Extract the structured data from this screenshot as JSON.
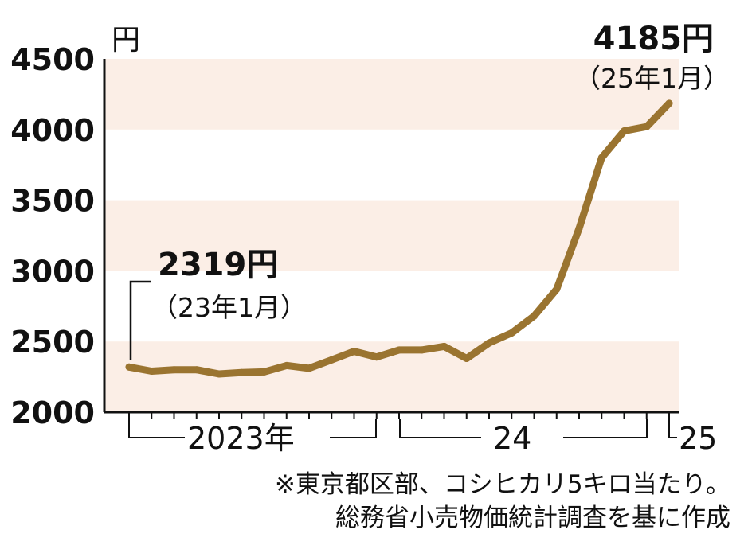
{
  "chart_data": {
    "type": "line",
    "unit": "円",
    "y_ticks": [
      "4500",
      "4000",
      "3500",
      "3000",
      "2500",
      "2000"
    ],
    "ylim": [
      2000,
      4500
    ],
    "x_labels": [
      "2023年",
      "24",
      "25"
    ],
    "series": [
      {
        "color": "#9a7430",
        "values": [
          2319,
          2290,
          2300,
          2300,
          2270,
          2280,
          2285,
          2330,
          2310,
          2370,
          2430,
          2390,
          2440,
          2440,
          2465,
          2380,
          2490,
          2560,
          2680,
          2870,
          3300,
          3800,
          3990,
          4020,
          4185
        ]
      }
    ],
    "band_color": "#fbeee6",
    "annotations": {
      "start_value": "2319円",
      "start_date": "（23年1月）",
      "end_value": "4185円",
      "end_date": "（25年1月）"
    },
    "note_lines": [
      "※東京都区部、コシヒカリ5キロ当たり。",
      "総務省小売物価統計調査を基に作成"
    ]
  }
}
